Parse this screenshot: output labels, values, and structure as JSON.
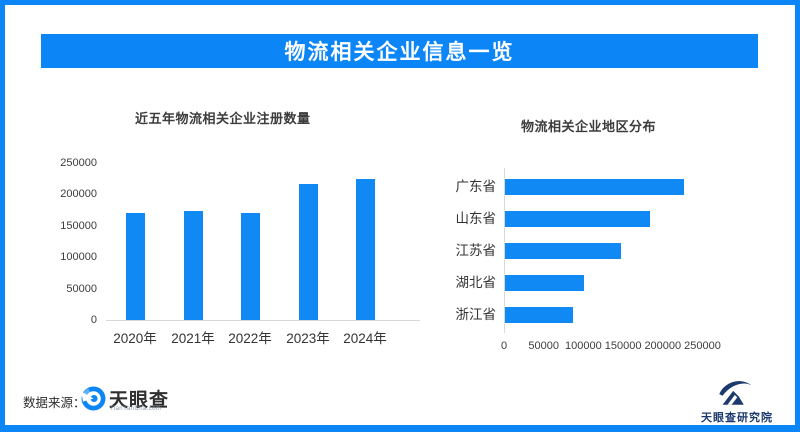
{
  "banner": {
    "title": "物流相关企业信息一览"
  },
  "chart_data": [
    {
      "type": "bar",
      "orientation": "vertical",
      "title": "近五年物流相关企业注册数量",
      "categories": [
        "2020年",
        "2021年",
        "2022年",
        "2023年",
        "2024年"
      ],
      "values": [
        170000,
        174000,
        170000,
        216000,
        224000
      ],
      "yticks": [
        0,
        50000,
        100000,
        150000,
        200000,
        250000
      ],
      "ylim": [
        0,
        250000
      ],
      "xlabel": "",
      "ylabel": "",
      "grid": false,
      "legend": "none"
    },
    {
      "type": "bar",
      "orientation": "horizontal",
      "title": "物流相关企业地区分布",
      "categories": [
        "广东省",
        "山东省",
        "江苏省",
        "湖北省",
        "浙江省"
      ],
      "values": [
        226000,
        182000,
        146000,
        99000,
        86000
      ],
      "xticks": [
        0,
        50000,
        100000,
        150000,
        200000,
        250000
      ],
      "xlim": [
        0,
        250000
      ],
      "xlabel": "",
      "ylabel": "",
      "grid": false,
      "legend": "none"
    }
  ],
  "footer": {
    "source_label": "数据来源：",
    "brand_name": "天眼查",
    "brand_domain": "TianYanCha.com",
    "institute_name": "天眼查研究院"
  },
  "colors": {
    "accent_blue": "#0c86f7",
    "bar_blue": "#1089f5",
    "axis_line": "#d8d8d8",
    "text_dark": "#3a3a3a",
    "institute_navy": "#1d3a6e"
  }
}
